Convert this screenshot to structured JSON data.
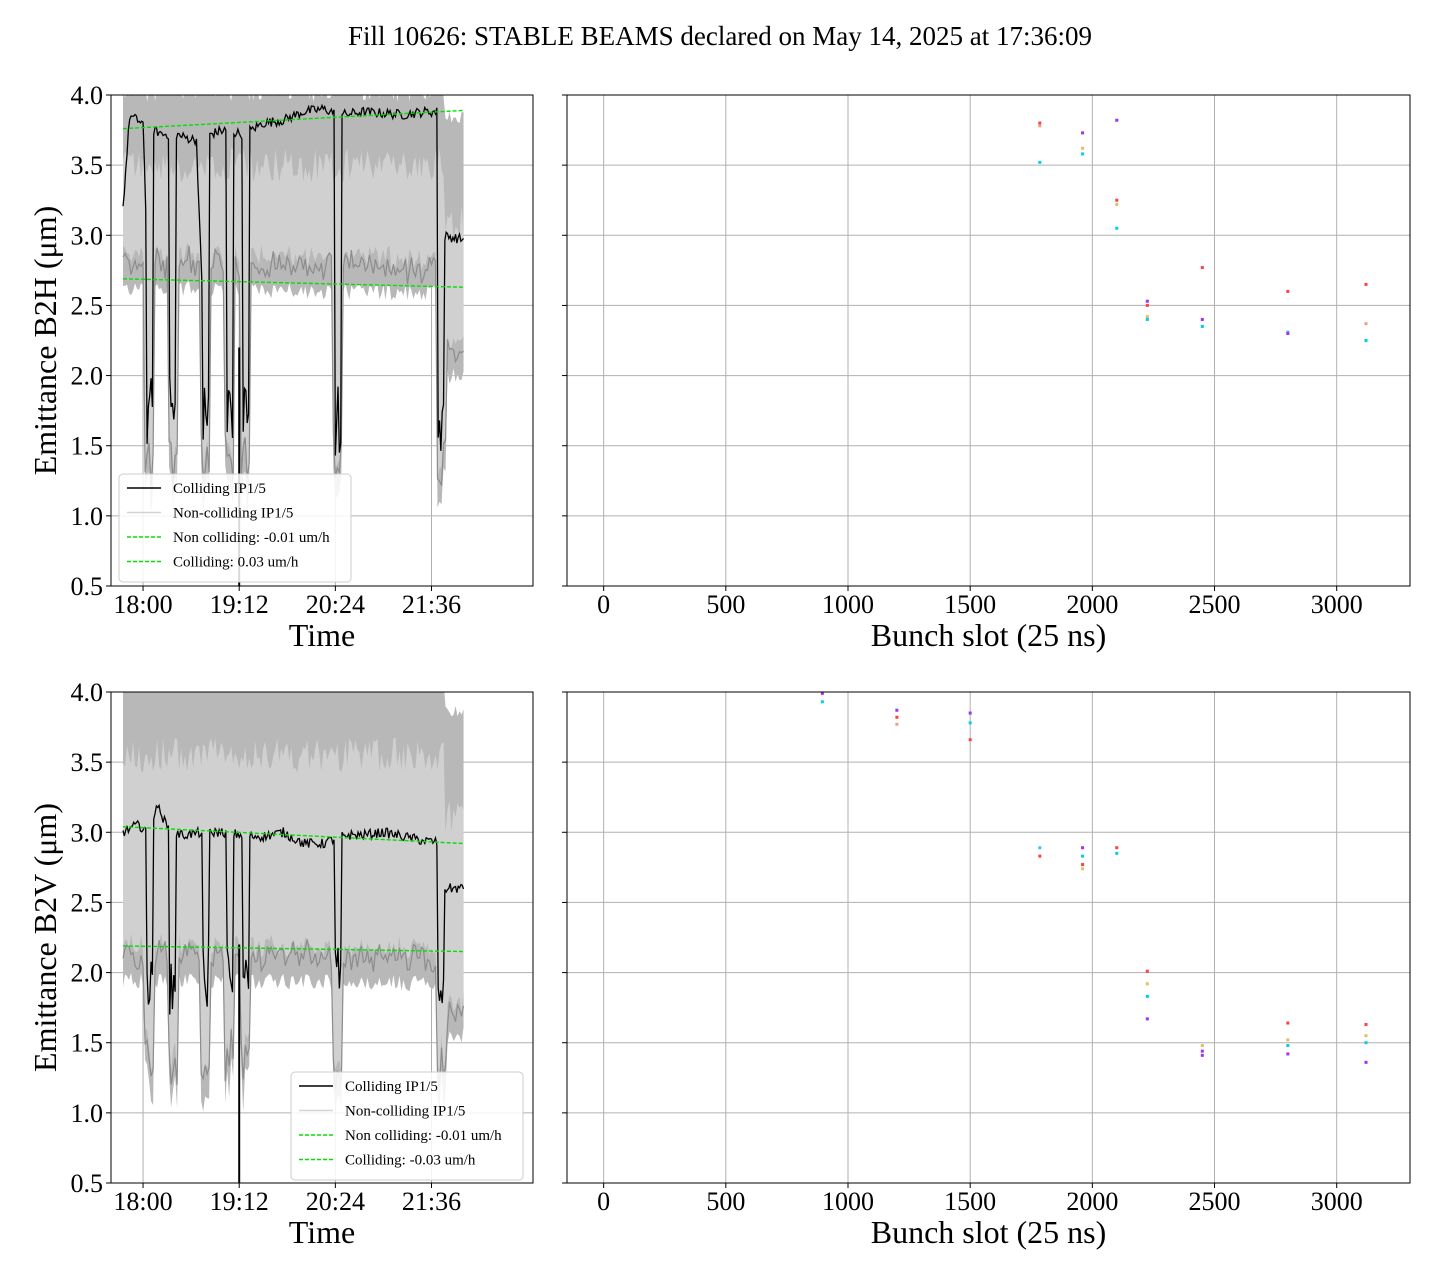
{
  "title": "Fill 10626: STABLE BEAMS declared on May 14, 2025 at 17:36:09",
  "colors": {
    "colliding": "#000000",
    "noncolliding": "#d3d3d3",
    "envelope_outer": "#b8b8b8",
    "envelope_inner": "#d8d8d8",
    "envelope_edge": "#8c8c8c",
    "fit": "#00e000",
    "grid": "#b0b0b0",
    "bunch_marker_colors": [
      "#ff4040",
      "#9b30ff",
      "#00d0e0",
      "#f0a080",
      "#40c0ff",
      "#e0c060"
    ]
  },
  "chart_data": [
    {
      "id": "b2h-time",
      "type": "line",
      "xlabel": "Time",
      "ylabel": "Emittance B2H (μm)",
      "ylim": [
        0.5,
        4.0
      ],
      "yticks": [
        "0.5",
        "1.0",
        "1.5",
        "2.0",
        "2.5",
        "3.0",
        "3.5",
        "4.0"
      ],
      "xlim": [
        "17:36",
        "22:52"
      ],
      "xticks": [
        "18:00",
        "19:12",
        "20:24",
        "21:36"
      ],
      "grid": true,
      "legend_position": "lower-left",
      "legend": [
        {
          "label": "Colliding IP1/5",
          "style": "solid-black"
        },
        {
          "label": "Non-colliding IP1/5",
          "style": "solid-lightgray"
        },
        {
          "label": "Non colliding: -0.01 um/h",
          "style": "dashed-green"
        },
        {
          "label": "Colliding: 0.03 um/h",
          "style": "dashed-green"
        }
      ],
      "colliding_level": [
        [
          "17:45",
          3.2
        ],
        [
          "17:50",
          3.85
        ],
        [
          "18:00",
          3.8
        ],
        [
          "18:05",
          2.2
        ],
        [
          "18:08",
          3.75
        ],
        [
          "18:15",
          3.72
        ],
        [
          "18:25",
          3.72
        ],
        [
          "18:30",
          3.7
        ],
        [
          "18:40",
          3.68
        ],
        [
          "18:45",
          2.4
        ],
        [
          "18:50",
          3.72
        ],
        [
          "19:00",
          3.75
        ],
        [
          "19:15",
          3.72
        ],
        [
          "19:30",
          3.8
        ],
        [
          "19:45",
          3.82
        ],
        [
          "20:00",
          3.88
        ],
        [
          "20:15",
          3.9
        ],
        [
          "20:30",
          3.86
        ],
        [
          "20:45",
          3.88
        ],
        [
          "21:00",
          3.87
        ],
        [
          "21:15",
          3.86
        ],
        [
          "21:30",
          3.88
        ],
        [
          "21:40",
          3.88
        ],
        [
          "21:43",
          3.0
        ],
        [
          "22:00",
          2.97
        ]
      ],
      "fits": [
        {
          "label": "Non colliding: -0.01 um/h",
          "start": [
            "17:45",
            2.69
          ],
          "end": [
            "22:00",
            2.63
          ]
        },
        {
          "label": "Colliding: 0.03 um/h",
          "start": [
            "17:45",
            3.76
          ],
          "end": [
            "22:00",
            3.89
          ]
        }
      ]
    },
    {
      "id": "b2h-bunch",
      "type": "scatter",
      "xlabel": "Bunch slot (25 ns)",
      "ylim": [
        0.5,
        4.0
      ],
      "xlim": [
        -150,
        3300
      ],
      "xticks": [
        "0",
        "500",
        "1000",
        "1500",
        "2000",
        "2500",
        "3000"
      ],
      "grid": true,
      "points": [
        {
          "x": 1785,
          "y": 3.8,
          "c": 0
        },
        {
          "x": 1785,
          "y": 3.78,
          "c": 3
        },
        {
          "x": 1785,
          "y": 3.52,
          "c": 2
        },
        {
          "x": 1960,
          "y": 3.73,
          "c": 1
        },
        {
          "x": 1960,
          "y": 3.62,
          "c": 5
        },
        {
          "x": 1960,
          "y": 3.58,
          "c": 2
        },
        {
          "x": 2100,
          "y": 3.82,
          "c": 1
        },
        {
          "x": 2100,
          "y": 3.25,
          "c": 0
        },
        {
          "x": 2100,
          "y": 3.22,
          "c": 5
        },
        {
          "x": 2100,
          "y": 3.05,
          "c": 2
        },
        {
          "x": 2225,
          "y": 2.53,
          "c": 1
        },
        {
          "x": 2225,
          "y": 2.5,
          "c": 0
        },
        {
          "x": 2225,
          "y": 2.42,
          "c": 5
        },
        {
          "x": 2225,
          "y": 2.4,
          "c": 2
        },
        {
          "x": 2450,
          "y": 2.77,
          "c": 0
        },
        {
          "x": 2450,
          "y": 2.4,
          "c": 1
        },
        {
          "x": 2450,
          "y": 2.35,
          "c": 2
        },
        {
          "x": 2800,
          "y": 2.6,
          "c": 0
        },
        {
          "x": 2800,
          "y": 2.31,
          "c": 4
        },
        {
          "x": 2800,
          "y": 2.3,
          "c": 1
        },
        {
          "x": 3120,
          "y": 2.65,
          "c": 0
        },
        {
          "x": 3120,
          "y": 2.37,
          "c": 3
        },
        {
          "x": 3120,
          "y": 2.25,
          "c": 2
        }
      ]
    },
    {
      "id": "b2v-time",
      "type": "line",
      "xlabel": "Time",
      "ylabel": "Emittance B2V (μm)",
      "ylim": [
        0.5,
        4.0
      ],
      "yticks": [
        "0.5",
        "1.0",
        "1.5",
        "2.0",
        "2.5",
        "3.0",
        "3.5",
        "4.0"
      ],
      "xlim": [
        "17:36",
        "22:52"
      ],
      "xticks": [
        "18:00",
        "19:12",
        "20:24",
        "21:36"
      ],
      "grid": true,
      "legend_position": "lower-right",
      "legend": [
        {
          "label": "Colliding IP1/5",
          "style": "solid-black"
        },
        {
          "label": "Non-colliding IP1/5",
          "style": "solid-lightgray"
        },
        {
          "label": "Non colliding: -0.01 um/h",
          "style": "dashed-green"
        },
        {
          "label": "Colliding: -0.03 um/h",
          "style": "dashed-green"
        }
      ],
      "colliding_level": [
        [
          "17:45",
          3.0
        ],
        [
          "17:55",
          3.05
        ],
        [
          "18:05",
          3.02
        ],
        [
          "18:10",
          3.2
        ],
        [
          "18:20",
          3.0
        ],
        [
          "18:30",
          2.98
        ],
        [
          "18:45",
          3.0
        ],
        [
          "19:00",
          3.0
        ],
        [
          "19:15",
          2.98
        ],
        [
          "19:30",
          2.97
        ],
        [
          "19:45",
          3.0
        ],
        [
          "20:00",
          2.92
        ],
        [
          "20:15",
          2.92
        ],
        [
          "20:30",
          2.98
        ],
        [
          "20:45",
          2.98
        ],
        [
          "21:00",
          3.0
        ],
        [
          "21:15",
          2.97
        ],
        [
          "21:30",
          2.94
        ],
        [
          "21:40",
          2.93
        ],
        [
          "21:43",
          2.6
        ],
        [
          "22:00",
          2.6
        ]
      ],
      "fits": [
        {
          "label": "Non colliding: -0.01 um/h",
          "start": [
            "17:45",
            2.19
          ],
          "end": [
            "22:00",
            2.15
          ]
        },
        {
          "label": "Colliding: -0.03 um/h",
          "start": [
            "17:45",
            3.04
          ],
          "end": [
            "22:00",
            2.92
          ]
        }
      ]
    },
    {
      "id": "b2v-bunch",
      "type": "scatter",
      "xlabel": "Bunch slot (25 ns)",
      "ylim": [
        0.5,
        4.0
      ],
      "xlim": [
        -150,
        3300
      ],
      "xticks": [
        "0",
        "500",
        "1000",
        "1500",
        "2000",
        "2500",
        "3000"
      ],
      "grid": true,
      "points": [
        {
          "x": 895,
          "y": 3.99,
          "c": 1
        },
        {
          "x": 895,
          "y": 3.93,
          "c": 2
        },
        {
          "x": 1200,
          "y": 3.87,
          "c": 1
        },
        {
          "x": 1200,
          "y": 3.82,
          "c": 0
        },
        {
          "x": 1200,
          "y": 3.77,
          "c": 3
        },
        {
          "x": 1500,
          "y": 3.85,
          "c": 1
        },
        {
          "x": 1500,
          "y": 3.78,
          "c": 2
        },
        {
          "x": 1500,
          "y": 3.66,
          "c": 0
        },
        {
          "x": 1785,
          "y": 2.89,
          "c": 4
        },
        {
          "x": 1785,
          "y": 2.83,
          "c": 0
        },
        {
          "x": 1960,
          "y": 2.89,
          "c": 1
        },
        {
          "x": 1960,
          "y": 2.83,
          "c": 2
        },
        {
          "x": 1960,
          "y": 2.77,
          "c": 0
        },
        {
          "x": 1960,
          "y": 2.74,
          "c": 5
        },
        {
          "x": 2100,
          "y": 2.89,
          "c": 0
        },
        {
          "x": 2100,
          "y": 2.85,
          "c": 2
        },
        {
          "x": 2225,
          "y": 2.01,
          "c": 0
        },
        {
          "x": 2225,
          "y": 1.92,
          "c": 5
        },
        {
          "x": 2225,
          "y": 1.83,
          "c": 2
        },
        {
          "x": 2225,
          "y": 1.67,
          "c": 1
        },
        {
          "x": 2450,
          "y": 1.48,
          "c": 5
        },
        {
          "x": 2450,
          "y": 1.44,
          "c": 1
        },
        {
          "x": 2450,
          "y": 1.41,
          "c": 1
        },
        {
          "x": 2800,
          "y": 1.64,
          "c": 0
        },
        {
          "x": 2800,
          "y": 1.52,
          "c": 5
        },
        {
          "x": 2800,
          "y": 1.48,
          "c": 2
        },
        {
          "x": 2800,
          "y": 1.42,
          "c": 1
        },
        {
          "x": 3120,
          "y": 1.63,
          "c": 0
        },
        {
          "x": 3120,
          "y": 1.55,
          "c": 5
        },
        {
          "x": 3120,
          "y": 1.5,
          "c": 2
        },
        {
          "x": 3120,
          "y": 1.36,
          "c": 1
        }
      ]
    }
  ]
}
